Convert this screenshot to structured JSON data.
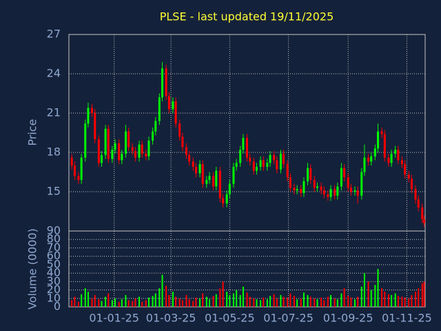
{
  "chart_data": {
    "type": "candlestick",
    "title": "PLSE - last updated 19/11/2025",
    "ylabel": "Price",
    "volume_ylabel": "Volume (0000)",
    "up_color": "#00ff00",
    "down_color": "#ff0000",
    "grid": true,
    "xlim": [
      "2024-11-15",
      "2025-11-20"
    ],
    "xticks": [
      {
        "value": "2025-01-01",
        "label": "01-01-25"
      },
      {
        "value": "2025-03-01",
        "label": "01-03-25"
      },
      {
        "value": "2025-05-01",
        "label": "01-05-25"
      },
      {
        "value": "2025-07-01",
        "label": "01-07-25"
      },
      {
        "value": "2025-09-01",
        "label": "01-09-25"
      },
      {
        "value": "2025-11-01",
        "label": "01-11-25"
      }
    ],
    "ylim": [
      12,
      27
    ],
    "yticks": [
      15,
      18,
      21,
      24,
      27
    ],
    "volume_ylim": [
      0,
      90
    ],
    "volume_yticks": [
      0,
      10,
      20,
      30,
      40,
      50,
      60,
      70,
      80,
      90
    ],
    "x": [
      "2024-11-18",
      "2024-11-21",
      "2024-11-25",
      "2024-11-28",
      "2024-12-02",
      "2024-12-05",
      "2024-12-09",
      "2024-12-12",
      "2024-12-16",
      "2024-12-19",
      "2024-12-23",
      "2024-12-26",
      "2024-12-30",
      "2025-01-02",
      "2025-01-06",
      "2025-01-09",
      "2025-01-13",
      "2025-01-16",
      "2025-01-20",
      "2025-01-23",
      "2025-01-27",
      "2025-01-30",
      "2025-02-03",
      "2025-02-06",
      "2025-02-10",
      "2025-02-13",
      "2025-02-17",
      "2025-02-20",
      "2025-02-24",
      "2025-02-27",
      "2025-03-03",
      "2025-03-06",
      "2025-03-10",
      "2025-03-13",
      "2025-03-17",
      "2025-03-20",
      "2025-03-24",
      "2025-03-27",
      "2025-03-31",
      "2025-04-03",
      "2025-04-07",
      "2025-04-10",
      "2025-04-14",
      "2025-04-17",
      "2025-04-21",
      "2025-04-24",
      "2025-04-28",
      "2025-05-01",
      "2025-05-05",
      "2025-05-08",
      "2025-05-12",
      "2025-05-15",
      "2025-05-19",
      "2025-05-22",
      "2025-05-26",
      "2025-05-29",
      "2025-06-02",
      "2025-06-05",
      "2025-06-09",
      "2025-06-12",
      "2025-06-16",
      "2025-06-19",
      "2025-06-23",
      "2025-06-26",
      "2025-06-30",
      "2025-07-03",
      "2025-07-07",
      "2025-07-10",
      "2025-07-14",
      "2025-07-17",
      "2025-07-21",
      "2025-07-24",
      "2025-07-28",
      "2025-07-31",
      "2025-08-04",
      "2025-08-07",
      "2025-08-11",
      "2025-08-14",
      "2025-08-18",
      "2025-08-21",
      "2025-08-25",
      "2025-08-28",
      "2025-09-01",
      "2025-09-04",
      "2025-09-08",
      "2025-09-11",
      "2025-09-15",
      "2025-09-18",
      "2025-09-22",
      "2025-09-25",
      "2025-09-29",
      "2025-10-02",
      "2025-10-06",
      "2025-10-09",
      "2025-10-13",
      "2025-10-16",
      "2025-10-20",
      "2025-10-23",
      "2025-10-27",
      "2025-10-30",
      "2025-11-03",
      "2025-11-06",
      "2025-11-10",
      "2025-11-13",
      "2025-11-17",
      "2025-11-19"
    ],
    "open": [
      17.6,
      17.0,
      16.2,
      15.9,
      17.6,
      20.2,
      21.4,
      21.0,
      19.0,
      17.2,
      17.8,
      19.8,
      17.5,
      18.2,
      18.7,
      17.4,
      17.9,
      19.6,
      18.4,
      18.1,
      17.6,
      18.6,
      17.9,
      17.7,
      18.9,
      19.6,
      20.4,
      22.2,
      24.4,
      22.3,
      21.3,
      21.9,
      20.2,
      19.2,
      18.4,
      17.8,
      17.3,
      16.9,
      16.4,
      17.1,
      15.6,
      15.9,
      16.2,
      15.4,
      16.6,
      14.5,
      14.1,
      14.8,
      15.6,
      16.9,
      17.2,
      18.2,
      19.1,
      17.6,
      17.3,
      16.6,
      16.9,
      17.4,
      16.9,
      17.2,
      17.8,
      17.4,
      16.7,
      17.9,
      17.1,
      16.1,
      15.3,
      15.1,
      15.2,
      14.9,
      15.8,
      16.8,
      15.9,
      15.3,
      15.4,
      15.1,
      14.8,
      14.6,
      15.2,
      14.7,
      15.4,
      16.8,
      16.1,
      15.3,
      15.0,
      15.1,
      14.7,
      16.5,
      17.6,
      17.3,
      17.7,
      18.3,
      19.6,
      19.4,
      17.6,
      17.2,
      17.9,
      18.2,
      17.4,
      17.1,
      16.3,
      16.0,
      15.2,
      14.4,
      13.8,
      12.9
    ],
    "high": [
      17.9,
      17.3,
      16.5,
      17.9,
      20.5,
      21.8,
      21.7,
      21.3,
      19.3,
      18.1,
      20.1,
      20.1,
      18.5,
      19.0,
      19.0,
      18.2,
      20.1,
      19.9,
      18.7,
      18.4,
      18.9,
      18.9,
      18.2,
      19.2,
      19.9,
      20.7,
      22.5,
      24.9,
      24.7,
      22.6,
      22.2,
      22.2,
      20.5,
      19.5,
      18.7,
      18.1,
      17.6,
      17.2,
      17.4,
      17.4,
      16.2,
      16.5,
      16.5,
      16.9,
      16.9,
      14.8,
      15.1,
      15.9,
      17.2,
      17.5,
      18.5,
      19.4,
      19.4,
      17.9,
      17.6,
      17.2,
      17.7,
      17.7,
      17.5,
      18.1,
      18.1,
      17.7,
      18.2,
      18.2,
      17.4,
      16.4,
      15.6,
      15.5,
      15.5,
      16.1,
      17.2,
      17.1,
      16.2,
      15.7,
      15.7,
      15.4,
      15.1,
      15.5,
      15.5,
      15.7,
      17.2,
      17.1,
      16.4,
      15.6,
      15.4,
      15.4,
      16.8,
      18.6,
      17.9,
      18.0,
      18.6,
      20.2,
      19.9,
      19.7,
      17.9,
      18.2,
      18.5,
      18.5,
      17.7,
      17.4,
      16.6,
      16.3,
      15.5,
      14.7,
      14.1,
      13.2
    ],
    "low": [
      16.7,
      15.9,
      15.6,
      15.6,
      17.3,
      19.9,
      20.7,
      18.7,
      16.9,
      16.9,
      17.5,
      17.2,
      17.2,
      17.9,
      17.1,
      17.1,
      17.6,
      18.1,
      17.8,
      17.3,
      17.3,
      17.6,
      17.4,
      17.4,
      18.6,
      19.3,
      20.1,
      21.9,
      22.0,
      21.0,
      21.0,
      19.9,
      18.9,
      18.1,
      17.5,
      17.0,
      16.6,
      16.1,
      16.1,
      15.3,
      15.3,
      15.6,
      15.1,
      15.1,
      14.2,
      13.8,
      13.8,
      14.5,
      15.3,
      16.6,
      16.9,
      17.9,
      17.3,
      17.0,
      16.3,
      16.3,
      16.6,
      16.6,
      16.6,
      16.9,
      17.1,
      16.4,
      16.4,
      16.8,
      15.8,
      15.0,
      14.8,
      14.8,
      14.6,
      14.6,
      15.5,
      15.6,
      15.0,
      15.0,
      14.8,
      14.5,
      14.3,
      14.3,
      14.4,
      14.4,
      15.1,
      15.8,
      15.0,
      14.7,
      14.7,
      14.1,
      14.4,
      16.2,
      17.0,
      17.0,
      17.4,
      18.0,
      19.1,
      17.3,
      16.9,
      16.9,
      17.6,
      17.1,
      16.8,
      16.0,
      15.7,
      14.9,
      14.1,
      13.5,
      12.6,
      12.3
    ],
    "close": [
      17.0,
      16.2,
      15.9,
      17.6,
      20.2,
      21.4,
      21.0,
      19.0,
      17.2,
      17.8,
      19.8,
      17.5,
      18.2,
      18.7,
      17.4,
      17.9,
      19.6,
      18.4,
      18.1,
      17.6,
      18.6,
      17.9,
      17.7,
      18.9,
      19.6,
      20.4,
      22.2,
      24.4,
      22.3,
      21.3,
      21.9,
      20.2,
      19.2,
      18.4,
      17.8,
      17.3,
      16.9,
      16.4,
      17.1,
      15.6,
      15.9,
      16.2,
      15.4,
      16.6,
      14.5,
      14.1,
      14.8,
      15.6,
      16.9,
      17.2,
      18.2,
      19.1,
      17.6,
      17.3,
      16.6,
      16.9,
      17.4,
      16.9,
      17.2,
      17.8,
      17.4,
      16.7,
      17.9,
      17.1,
      16.1,
      15.3,
      15.1,
      15.2,
      14.9,
      15.8,
      16.8,
      15.9,
      15.3,
      15.4,
      15.1,
      14.8,
      14.6,
      15.2,
      14.7,
      15.4,
      16.8,
      16.1,
      15.3,
      15.0,
      15.1,
      14.7,
      16.5,
      17.6,
      17.3,
      17.7,
      18.3,
      19.6,
      19.4,
      17.6,
      17.2,
      17.9,
      18.2,
      17.4,
      17.1,
      16.3,
      16.0,
      15.2,
      14.4,
      13.8,
      12.9,
      12.6
    ],
    "volume": [
      8,
      12,
      6,
      15,
      22,
      18,
      10,
      14,
      9,
      7,
      12,
      16,
      8,
      10,
      6,
      9,
      14,
      8,
      7,
      10,
      12,
      6,
      8,
      11,
      13,
      16,
      22,
      38,
      25,
      14,
      18,
      12,
      10,
      8,
      14,
      9,
      7,
      11,
      10,
      16,
      12,
      9,
      13,
      15,
      22,
      30,
      18,
      14,
      16,
      20,
      14,
      24,
      17,
      12,
      10,
      9,
      8,
      11,
      9,
      13,
      15,
      10,
      14,
      12,
      11,
      16,
      13,
      9,
      10,
      17,
      14,
      12,
      10,
      9,
      11,
      8,
      12,
      14,
      10,
      9,
      16,
      22,
      13,
      11,
      9,
      12,
      24,
      40,
      30,
      20,
      26,
      45,
      22,
      18,
      15,
      14,
      16,
      13,
      12,
      11,
      10,
      14,
      18,
      22,
      28,
      30
    ]
  }
}
